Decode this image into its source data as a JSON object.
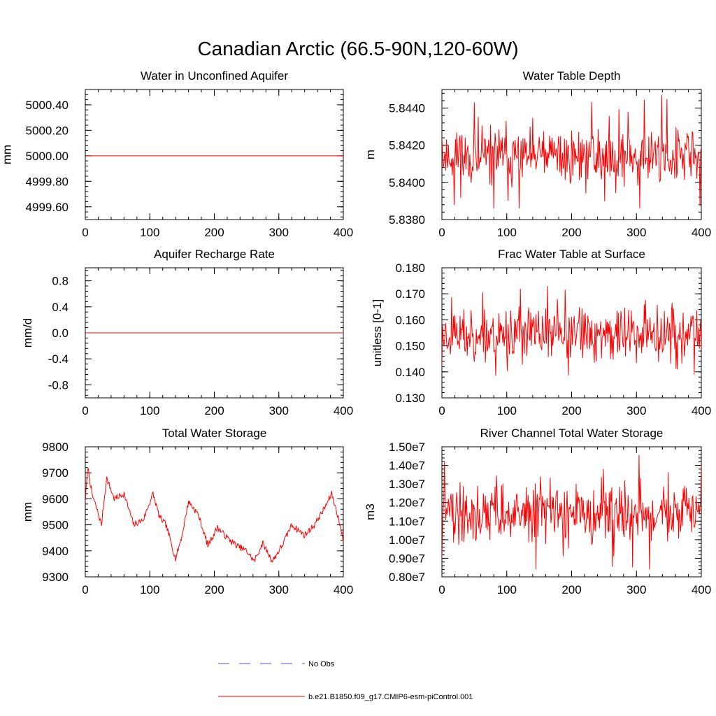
{
  "figure": {
    "title": "Canadian Arctic (66.5-90N,120-60W)"
  },
  "legend": [
    {
      "label": "No Obs",
      "color": "#5555cc",
      "style": "dashed"
    },
    {
      "label": "b.e21.B1850.f09_g17.CMIP6-esm-piControl.001",
      "color": "#ff0000",
      "style": "solid"
    }
  ],
  "chart_data": [
    {
      "type": "line",
      "title": "Water in Unconfined Aquifer",
      "ylabel": "mm",
      "xlim": [
        0,
        400
      ],
      "ylim": [
        4999.5,
        5000.52
      ],
      "xticks": [
        0,
        100,
        200,
        300,
        400
      ],
      "xtick_labels": [
        "0",
        "100",
        "200",
        "300",
        "400"
      ],
      "yticks": [
        4999.6,
        4999.8,
        5000.0,
        5000.2,
        5000.4
      ],
      "ytick_labels": [
        "4999.60",
        "4999.80",
        "5000.00",
        "5000.20",
        "5000.40"
      ],
      "series": [
        {
          "name": "b.e21.B1850.f09_g17.CMIP6-esm-piControl.001",
          "color": "#ff0000",
          "generator": {
            "kind": "constant",
            "n": 400,
            "base": 5000.0
          }
        }
      ]
    },
    {
      "type": "line",
      "title": "Water Table Depth",
      "ylabel": "m",
      "xlim": [
        0,
        400
      ],
      "ylim": [
        5.838,
        5.845
      ],
      "xticks": [
        0,
        100,
        200,
        300,
        400
      ],
      "xtick_labels": [
        "0",
        "100",
        "200",
        "300",
        "400"
      ],
      "yticks": [
        5.838,
        5.84,
        5.842,
        5.844
      ],
      "ytick_labels": [
        "5.8380",
        "5.8400",
        "5.8420",
        "5.8440"
      ],
      "series": [
        {
          "name": "b.e21.B1850.f09_g17.CMIP6-esm-piControl.001",
          "color": "#ff0000",
          "generator": {
            "kind": "noise",
            "n": 400,
            "base": 5.8414,
            "amp": 0.0011,
            "seed": 11,
            "min": 5.8386,
            "max": 5.8449,
            "start": 5.8424
          }
        }
      ]
    },
    {
      "type": "line",
      "title": "Aquifer Recharge Rate",
      "ylabel": "mm/d",
      "xlim": [
        0,
        400
      ],
      "ylim": [
        -1.0,
        1.0
      ],
      "xticks": [
        0,
        100,
        200,
        300,
        400
      ],
      "xtick_labels": [
        "0",
        "100",
        "200",
        "300",
        "400"
      ],
      "yticks": [
        -0.8,
        -0.4,
        0.0,
        0.4,
        0.8
      ],
      "ytick_labels": [
        "-0.8",
        "-0.4",
        "0.0",
        "0.4",
        "0.8"
      ],
      "series": [
        {
          "name": "b.e21.B1850.f09_g17.CMIP6-esm-piControl.001",
          "color": "#ff0000",
          "generator": {
            "kind": "constant",
            "n": 400,
            "base": 0.0
          }
        }
      ]
    },
    {
      "type": "line",
      "title": "Frac Water Table at Surface",
      "ylabel": "unitless [0-1]",
      "xlim": [
        0,
        400
      ],
      "ylim": [
        0.13,
        0.18
      ],
      "xticks": [
        0,
        100,
        200,
        300,
        400
      ],
      "xtick_labels": [
        "0",
        "100",
        "200",
        "300",
        "400"
      ],
      "yticks": [
        0.13,
        0.14,
        0.15,
        0.16,
        0.17,
        0.18
      ],
      "ytick_labels": [
        "0.130",
        "0.140",
        "0.150",
        "0.160",
        "0.170",
        "0.180"
      ],
      "series": [
        {
          "name": "b.e21.B1850.f09_g17.CMIP6-esm-piControl.001",
          "color": "#ff0000",
          "generator": {
            "kind": "noise",
            "n": 400,
            "base": 0.1545,
            "amp": 0.0075,
            "seed": 23,
            "min": 0.1385,
            "max": 0.173,
            "start": 0.142
          }
        }
      ]
    },
    {
      "type": "line",
      "title": "Total Water Storage",
      "ylabel": "mm",
      "xlim": [
        0,
        400
      ],
      "ylim": [
        9300,
        9800
      ],
      "xticks": [
        0,
        100,
        200,
        300,
        400
      ],
      "xtick_labels": [
        "0",
        "100",
        "200",
        "300",
        "400"
      ],
      "yticks": [
        9300,
        9400,
        9500,
        9600,
        9700,
        9800
      ],
      "ytick_labels": [
        "9300",
        "9400",
        "9500",
        "9600",
        "9700",
        "9800"
      ],
      "series": [
        {
          "name": "b.e21.B1850.f09_g17.CMIP6-esm-piControl.001",
          "color": "#ff0000",
          "generator": {
            "kind": "anchors",
            "n": 400,
            "amp": 12,
            "seed": 7,
            "anchors": [
              [
                0,
                9590
              ],
              [
                4,
                9725
              ],
              [
                10,
                9620
              ],
              [
                18,
                9560
              ],
              [
                25,
                9500
              ],
              [
                33,
                9680
              ],
              [
                45,
                9600
              ],
              [
                60,
                9620
              ],
              [
                75,
                9500
              ],
              [
                90,
                9520
              ],
              [
                105,
                9620
              ],
              [
                115,
                9530
              ],
              [
                125,
                9500
              ],
              [
                140,
                9370
              ],
              [
                150,
                9460
              ],
              [
                160,
                9590
              ],
              [
                175,
                9540
              ],
              [
                190,
                9420
              ],
              [
                205,
                9490
              ],
              [
                220,
                9450
              ],
              [
                235,
                9420
              ],
              [
                250,
                9400
              ],
              [
                262,
                9360
              ],
              [
                275,
                9430
              ],
              [
                290,
                9360
              ],
              [
                305,
                9420
              ],
              [
                320,
                9500
              ],
              [
                340,
                9460
              ],
              [
                355,
                9500
              ],
              [
                370,
                9560
              ],
              [
                382,
                9620
              ],
              [
                392,
                9530
              ],
              [
                400,
                9440
              ]
            ]
          }
        }
      ]
    },
    {
      "type": "line",
      "title": "River Channel Total Water Storage",
      "ylabel": "m3",
      "xlim": [
        0,
        400
      ],
      "ylim": [
        8000000,
        15000000
      ],
      "xticks": [
        0,
        100,
        200,
        300,
        400
      ],
      "xtick_labels": [
        "0",
        "100",
        "200",
        "300",
        "400"
      ],
      "yticks": [
        8000000,
        9000000,
        10000000,
        11000000,
        12000000,
        13000000,
        14000000,
        15000000
      ],
      "ytick_labels": [
        "0.80e7",
        "0.90e7",
        "1.00e7",
        "1.10e7",
        "1.20e7",
        "1.30e7",
        "1.40e7",
        "1.50e7"
      ],
      "series": [
        {
          "name": "b.e21.B1850.f09_g17.CMIP6-esm-piControl.001",
          "color": "#ff0000",
          "generator": {
            "kind": "noise",
            "n": 400,
            "base": 11400000,
            "amp": 1100000,
            "seed": 41,
            "min": 8400000,
            "max": 14700000,
            "start": 9000000
          }
        }
      ]
    }
  ]
}
